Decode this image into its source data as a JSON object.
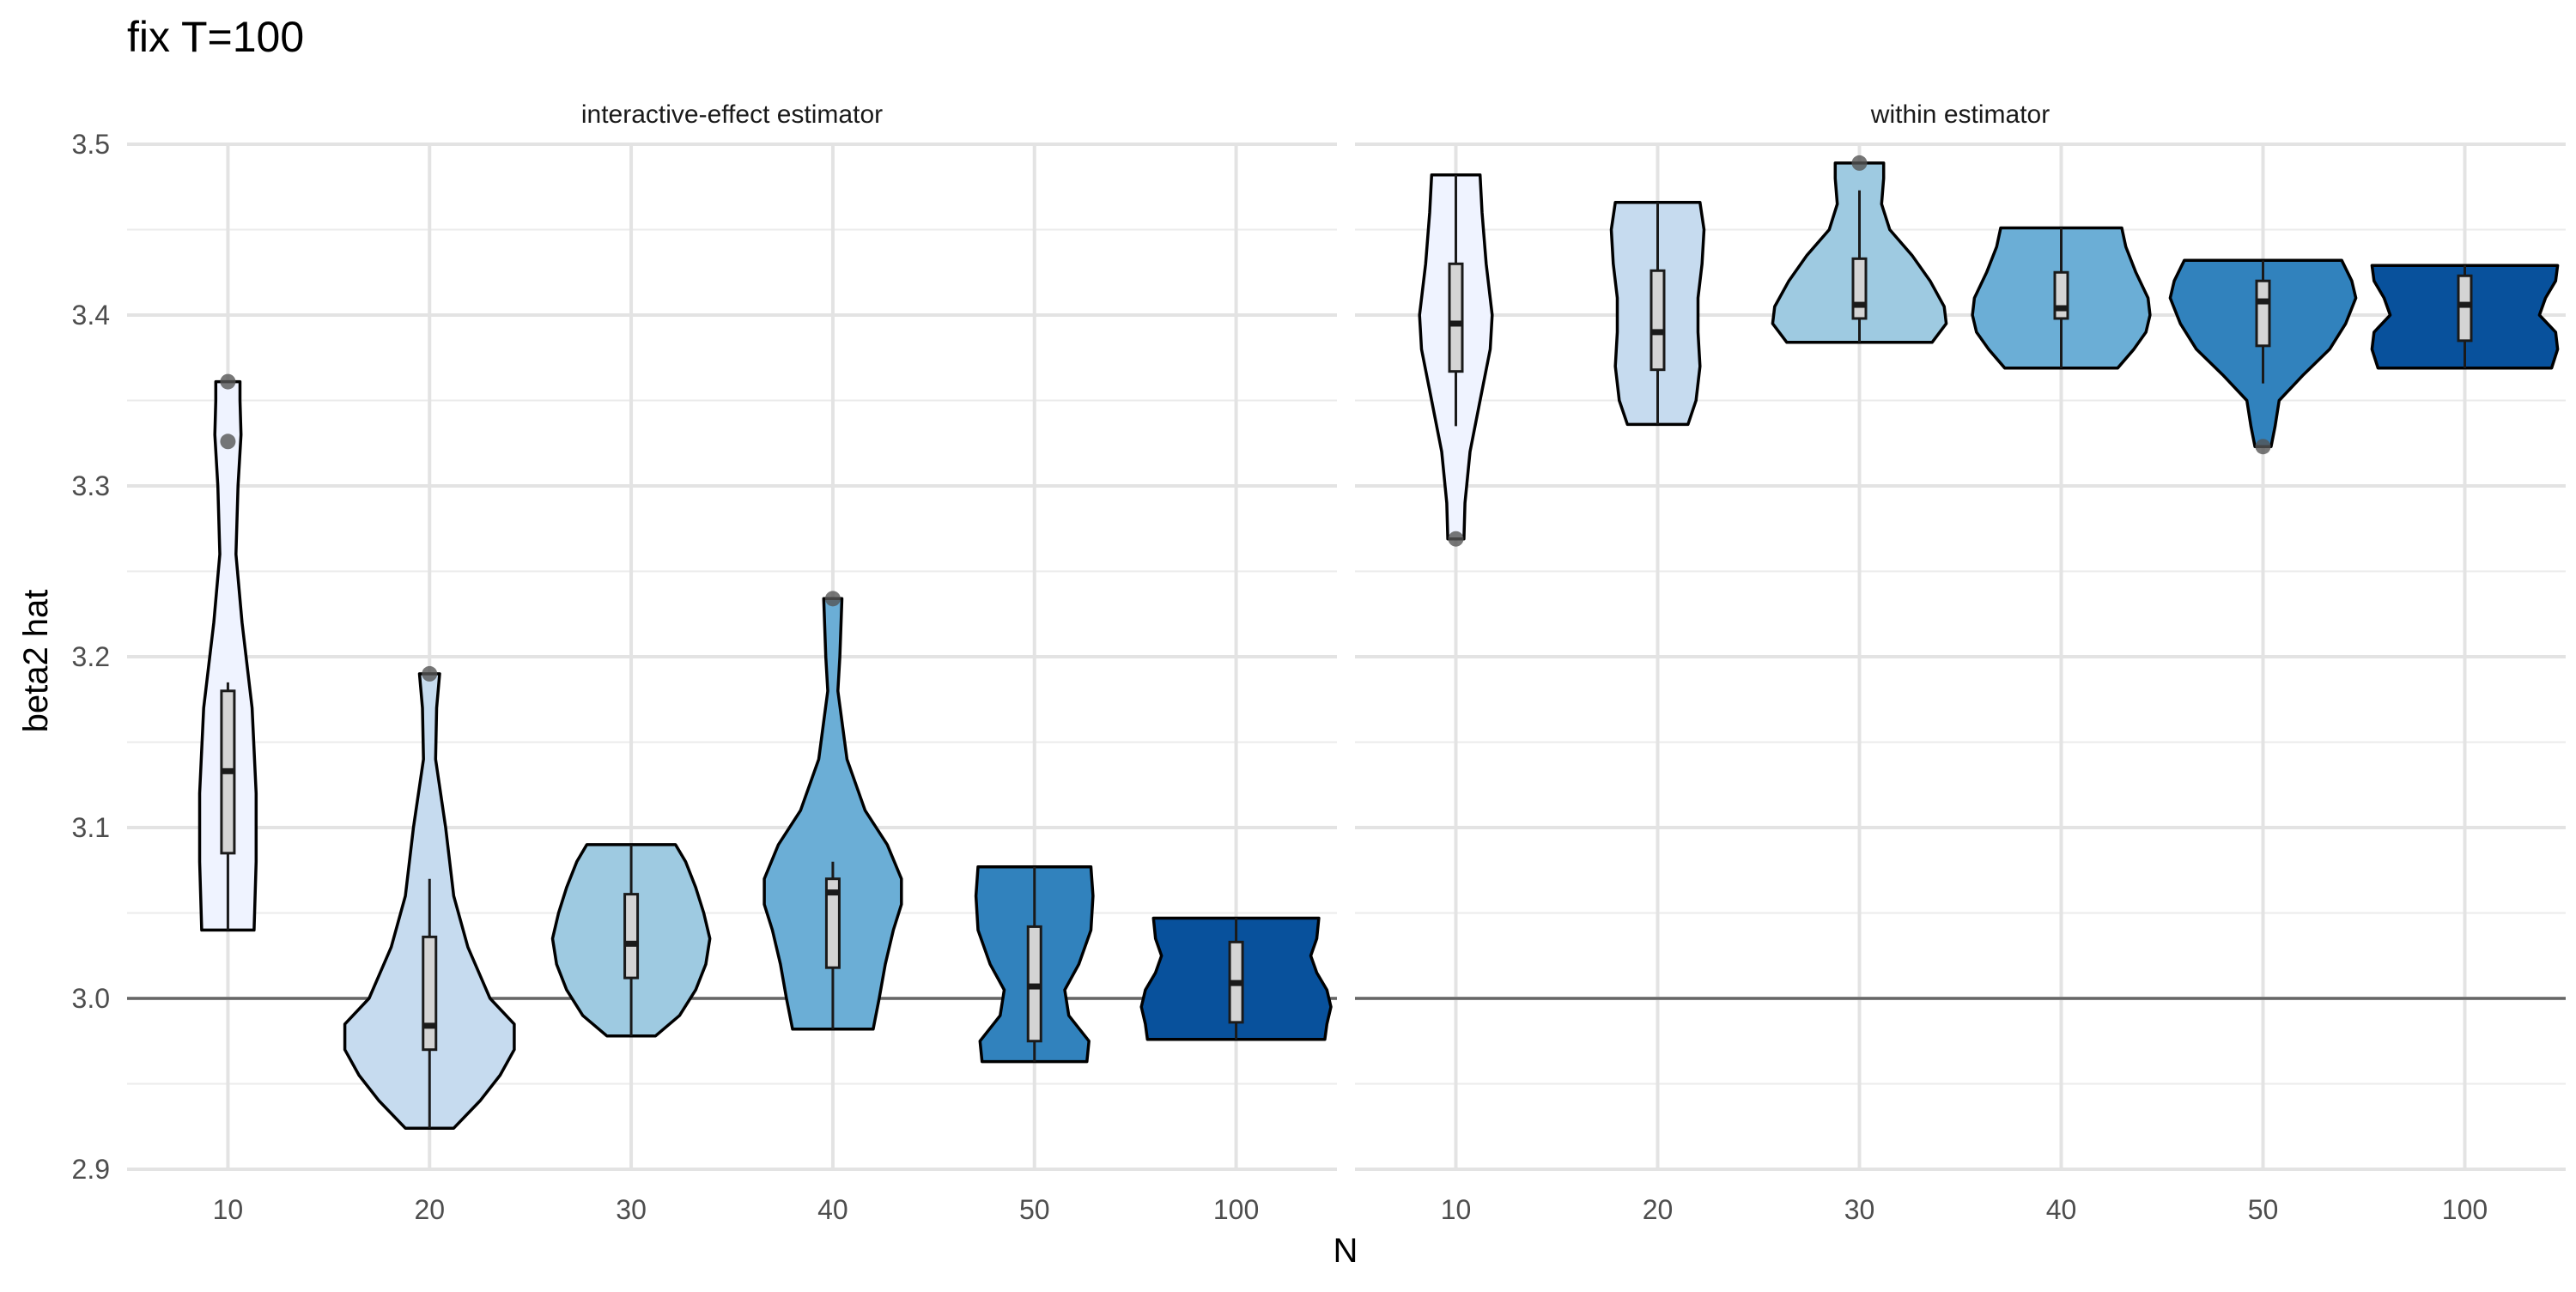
{
  "chart_data": {
    "type": "violin",
    "title": "fix T=100",
    "xlabel": "N",
    "ylabel": "beta2 hat",
    "ylim": [
      2.9,
      3.5
    ],
    "yticks": [
      "2.9",
      "3.0",
      "3.1",
      "3.2",
      "3.3",
      "3.4",
      "3.5"
    ],
    "reference_line": 3.0,
    "grid": true,
    "categories": [
      "10",
      "20",
      "30",
      "40",
      "50",
      "100"
    ],
    "fill_colors": [
      "#eff3ff",
      "#c6dbef",
      "#9ecae1",
      "#6baed6",
      "#3182bd",
      "#08519c"
    ],
    "panels": [
      {
        "strip_label": "interactive-effect estimator",
        "groups": [
          {
            "n": "10",
            "min": 3.04,
            "max": 3.361,
            "q1": 3.085,
            "median": 3.133,
            "q3": 3.18,
            "whisker_low": 3.04,
            "whisker_high": 3.185,
            "outliers": [
              3.326,
              3.361
            ],
            "density": [
              [
                3.04,
                0.13
              ],
              [
                3.08,
                0.14
              ],
              [
                3.12,
                0.14
              ],
              [
                3.17,
                0.12
              ],
              [
                3.22,
                0.07
              ],
              [
                3.26,
                0.04
              ],
              [
                3.3,
                0.05
              ],
              [
                3.33,
                0.065
              ],
              [
                3.35,
                0.06
              ],
              [
                3.361,
                0.06
              ]
            ]
          },
          {
            "n": "20",
            "min": 2.924,
            "max": 3.19,
            "q1": 2.97,
            "median": 2.984,
            "q3": 3.036,
            "whisker_low": 2.924,
            "whisker_high": 3.07,
            "outliers": [
              3.19
            ],
            "density": [
              [
                2.924,
                0.12
              ],
              [
                2.94,
                0.25
              ],
              [
                2.955,
                0.35
              ],
              [
                2.97,
                0.42
              ],
              [
                2.985,
                0.42
              ],
              [
                3.0,
                0.3
              ],
              [
                3.03,
                0.19
              ],
              [
                3.06,
                0.12
              ],
              [
                3.1,
                0.08
              ],
              [
                3.14,
                0.03
              ],
              [
                3.17,
                0.035
              ],
              [
                3.19,
                0.05
              ]
            ]
          },
          {
            "n": "30",
            "min": 2.978,
            "max": 3.09,
            "q1": 3.012,
            "median": 3.032,
            "q3": 3.061,
            "whisker_low": 2.978,
            "whisker_high": 3.09,
            "outliers": [],
            "density": [
              [
                2.978,
                0.12
              ],
              [
                2.99,
                0.24
              ],
              [
                3.005,
                0.32
              ],
              [
                3.02,
                0.37
              ],
              [
                3.035,
                0.39
              ],
              [
                3.05,
                0.36
              ],
              [
                3.065,
                0.32
              ],
              [
                3.08,
                0.27
              ],
              [
                3.09,
                0.22
              ]
            ]
          },
          {
            "n": "40",
            "min": 2.982,
            "max": 3.234,
            "q1": 3.018,
            "median": 3.062,
            "q3": 3.07,
            "whisker_low": 2.982,
            "whisker_high": 3.08,
            "outliers": [
              3.234
            ],
            "density": [
              [
                2.982,
                0.2
              ],
              [
                3.0,
                0.23
              ],
              [
                3.02,
                0.26
              ],
              [
                3.04,
                0.3
              ],
              [
                3.055,
                0.34
              ],
              [
                3.07,
                0.34
              ],
              [
                3.09,
                0.27
              ],
              [
                3.11,
                0.16
              ],
              [
                3.14,
                0.07
              ],
              [
                3.18,
                0.025
              ],
              [
                3.2,
                0.035
              ],
              [
                3.234,
                0.045
              ]
            ]
          },
          {
            "n": "50",
            "min": 2.963,
            "max": 3.077,
            "q1": 2.975,
            "median": 3.007,
            "q3": 3.042,
            "whisker_low": 2.963,
            "whisker_high": 3.077,
            "outliers": [],
            "density": [
              [
                2.963,
                0.26
              ],
              [
                2.975,
                0.27
              ],
              [
                2.99,
                0.17
              ],
              [
                3.005,
                0.15
              ],
              [
                3.02,
                0.22
              ],
              [
                3.04,
                0.28
              ],
              [
                3.06,
                0.29
              ],
              [
                3.077,
                0.28
              ]
            ]
          },
          {
            "n": "100",
            "min": 2.976,
            "max": 3.047,
            "q1": 2.986,
            "median": 3.009,
            "q3": 3.033,
            "whisker_low": 2.976,
            "whisker_high": 3.047,
            "outliers": [],
            "density": [
              [
                2.976,
                0.44
              ],
              [
                2.985,
                0.45
              ],
              [
                2.995,
                0.47
              ],
              [
                3.005,
                0.45
              ],
              [
                3.015,
                0.4
              ],
              [
                3.025,
                0.37
              ],
              [
                3.035,
                0.4
              ],
              [
                3.047,
                0.41
              ]
            ]
          }
        ]
      },
      {
        "strip_label": "within estimator",
        "groups": [
          {
            "n": "10",
            "min": 3.269,
            "max": 3.482,
            "q1": 3.367,
            "median": 3.395,
            "q3": 3.43,
            "whisker_low": 3.335,
            "whisker_high": 3.482,
            "outliers": [
              3.269
            ],
            "density": [
              [
                3.269,
                0.04
              ],
              [
                3.29,
                0.045
              ],
              [
                3.32,
                0.07
              ],
              [
                3.35,
                0.12
              ],
              [
                3.38,
                0.17
              ],
              [
                3.4,
                0.18
              ],
              [
                3.43,
                0.15
              ],
              [
                3.46,
                0.13
              ],
              [
                3.482,
                0.12
              ]
            ]
          },
          {
            "n": "20",
            "min": 3.336,
            "max": 3.466,
            "q1": 3.368,
            "median": 3.39,
            "q3": 3.426,
            "whisker_low": 3.336,
            "whisker_high": 3.466,
            "outliers": [],
            "density": [
              [
                3.336,
                0.15
              ],
              [
                3.35,
                0.19
              ],
              [
                3.37,
                0.21
              ],
              [
                3.39,
                0.2
              ],
              [
                3.41,
                0.2
              ],
              [
                3.43,
                0.22
              ],
              [
                3.45,
                0.23
              ],
              [
                3.466,
                0.21
              ]
            ]
          },
          {
            "n": "30",
            "min": 3.384,
            "max": 3.489,
            "q1": 3.398,
            "median": 3.406,
            "q3": 3.433,
            "whisker_low": 3.384,
            "whisker_high": 3.473,
            "outliers": [
              3.489
            ],
            "density": [
              [
                3.384,
                0.36
              ],
              [
                3.395,
                0.43
              ],
              [
                3.405,
                0.42
              ],
              [
                3.42,
                0.35
              ],
              [
                3.435,
                0.26
              ],
              [
                3.45,
                0.15
              ],
              [
                3.465,
                0.11
              ],
              [
                3.48,
                0.12
              ],
              [
                3.489,
                0.12
              ]
            ]
          },
          {
            "n": "40",
            "min": 3.369,
            "max": 3.451,
            "q1": 3.398,
            "median": 3.404,
            "q3": 3.425,
            "whisker_low": 3.369,
            "whisker_high": 3.451,
            "outliers": [],
            "density": [
              [
                3.369,
                0.28
              ],
              [
                3.38,
                0.36
              ],
              [
                3.39,
                0.42
              ],
              [
                3.4,
                0.44
              ],
              [
                3.41,
                0.43
              ],
              [
                3.425,
                0.37
              ],
              [
                3.44,
                0.32
              ],
              [
                3.451,
                0.3
              ]
            ]
          },
          {
            "n": "50",
            "min": 3.323,
            "max": 3.432,
            "q1": 3.382,
            "median": 3.408,
            "q3": 3.42,
            "whisker_low": 3.36,
            "whisker_high": 3.432,
            "outliers": [
              3.323
            ],
            "density": [
              [
                3.323,
                0.04
              ],
              [
                3.335,
                0.06
              ],
              [
                3.35,
                0.08
              ],
              [
                3.365,
                0.2
              ],
              [
                3.38,
                0.33
              ],
              [
                3.395,
                0.41
              ],
              [
                3.41,
                0.46
              ],
              [
                3.42,
                0.44
              ],
              [
                3.432,
                0.39
              ]
            ]
          },
          {
            "n": "100",
            "min": 3.369,
            "max": 3.429,
            "q1": 3.385,
            "median": 3.406,
            "q3": 3.423,
            "whisker_low": 3.369,
            "whisker_high": 3.429,
            "outliers": [],
            "density": [
              [
                3.369,
                0.43
              ],
              [
                3.38,
                0.46
              ],
              [
                3.39,
                0.45
              ],
              [
                3.4,
                0.37
              ],
              [
                3.41,
                0.4
              ],
              [
                3.42,
                0.45
              ],
              [
                3.429,
                0.46
              ]
            ]
          }
        ]
      }
    ]
  }
}
